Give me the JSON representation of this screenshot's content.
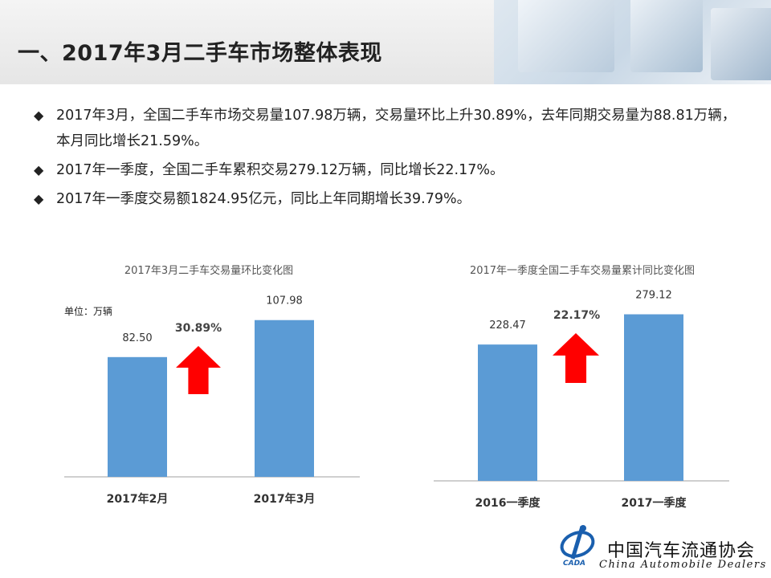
{
  "title": "一、2017年3月二手车市场整体表现",
  "bullets": [
    "2017年3月，全国二手车市场交易量107.98万辆，交易量环比上升30.89%，去年同期交易量为88.81万辆，本月同比增长21.59%。",
    "2017年一季度，全国二手车累积交易279.12万辆，同比增长22.17%。",
    "2017年一季度交易额1824.95亿元，同比上年同期增长39.79%。"
  ],
  "bullet_marker": "◆",
  "colors": {
    "bar": "#5b9bd5",
    "arrow": "#ff0000",
    "axis": "#bfbfbf"
  },
  "chart_data": [
    {
      "type": "bar",
      "title": "2017年3月二手车交易量环比变化图",
      "unit_label": "单位：万辆",
      "categories": [
        "2017年2月",
        "2017年3月"
      ],
      "values": [
        82.5,
        107.98
      ],
      "value_labels": [
        "82.50",
        "107.98"
      ],
      "growth_label": "30.89%",
      "ylim": [
        0,
        120
      ]
    },
    {
      "type": "bar",
      "title": "2017年一季度全国二手车交易量累计同比变化图",
      "categories": [
        "2016一季度",
        "2017一季度"
      ],
      "values": [
        228.47,
        279.12
      ],
      "value_labels": [
        "228.47",
        "279.12"
      ],
      "growth_label": "22.17%",
      "ylim": [
        0,
        300
      ]
    }
  ],
  "footer": {
    "org_cn": "中国汽车流通协会",
    "org_en": "China  Automobile Dealers",
    "logo_text": "CADA"
  }
}
